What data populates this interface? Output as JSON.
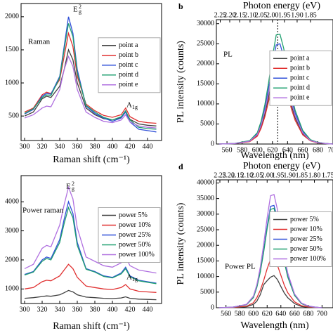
{
  "chart_data": [
    {
      "type": "line",
      "annotations": [
        {
          "text": "Raman"
        },
        {
          "text": "E",
          "sup": "2",
          "sub": "g"
        },
        {
          "text": "A",
          "sub": "1g"
        }
      ],
      "xlabel": "Raman shift (cm⁻¹)",
      "x": [
        300,
        310,
        320,
        325,
        330,
        340,
        345,
        350,
        355,
        360,
        370,
        380,
        390,
        400,
        410,
        415,
        420,
        430,
        440,
        450
      ],
      "series": [
        {
          "name": "point a",
          "color": "#404040",
          "values": [
            500,
            560,
            760,
            800,
            780,
            950,
            1200,
            1500,
            1350,
            1000,
            620,
            520,
            460,
            440,
            480,
            560,
            450,
            380,
            360,
            350
          ]
        },
        {
          "name": "point b",
          "color": "#e03030",
          "values": [
            560,
            620,
            820,
            860,
            840,
            1050,
            1400,
            1750,
            1550,
            1100,
            680,
            580,
            510,
            480,
            520,
            620,
            490,
            420,
            400,
            390
          ]
        },
        {
          "name": "point c",
          "color": "#3050d8",
          "values": [
            530,
            600,
            800,
            840,
            830,
            1100,
            1550,
            2000,
            1750,
            1200,
            650,
            540,
            470,
            420,
            470,
            560,
            410,
            300,
            280,
            260
          ]
        },
        {
          "name": "point d",
          "color": "#20a070",
          "values": [
            540,
            610,
            780,
            820,
            810,
            1080,
            1500,
            1900,
            1700,
            1150,
            660,
            560,
            480,
            440,
            490,
            580,
            440,
            330,
            310,
            300
          ]
        },
        {
          "name": "point e",
          "color": "#b070e0",
          "values": [
            470,
            520,
            620,
            650,
            640,
            900,
            1200,
            1400,
            1250,
            900,
            560,
            480,
            420,
            400,
            440,
            520,
            410,
            350,
            330,
            320
          ]
        }
      ],
      "xlim": [
        296,
        456
      ],
      "ylim": [
        130,
        2200
      ],
      "xticks": [
        300,
        320,
        340,
        360,
        380,
        400,
        420,
        440
      ],
      "yticks": [
        500,
        1000,
        1500,
        2000
      ],
      "legend": "upper right"
    },
    {
      "type": "line",
      "panel": "b",
      "annotations": [
        {
          "text": "PL"
        }
      ],
      "xlabel": "Wavelength (nm)",
      "ylabel": "PL intensity (counts)",
      "x2label": "Photon energy (eV)",
      "x": [
        550,
        570,
        590,
        600,
        605,
        610,
        615,
        620,
        625,
        630,
        635,
        640,
        645,
        650,
        660,
        670,
        680,
        690,
        700
      ],
      "series": [
        {
          "name": "point a",
          "color": "#404040",
          "values": [
            0,
            100,
            650,
            2150,
            4300,
            7500,
            11800,
            16800,
            20900,
            21100,
            18300,
            14000,
            9700,
            6500,
            2600,
            900,
            300,
            100,
            0
          ]
        },
        {
          "name": "point b",
          "color": "#e03030",
          "values": [
            0,
            100,
            600,
            1950,
            3900,
            6800,
            10700,
            15200,
            18900,
            19100,
            16600,
            12700,
            8800,
            5900,
            2300,
            800,
            300,
            100,
            0
          ]
        },
        {
          "name": "point c",
          "color": "#3050d8",
          "values": [
            0,
            130,
            770,
            2550,
            5100,
            8900,
            14000,
            19900,
            24700,
            25000,
            21700,
            16600,
            11500,
            7700,
            3100,
            1000,
            400,
            130,
            0
          ]
        },
        {
          "name": "point d",
          "color": "#20a070",
          "values": [
            0,
            140,
            840,
            2800,
            5600,
            9800,
            15400,
            21800,
            27200,
            27400,
            23800,
            18200,
            12600,
            8400,
            3400,
            1100,
            400,
            140,
            0
          ]
        },
        {
          "name": "point e",
          "color": "#b070e0",
          "values": [
            0,
            120,
            700,
            2350,
            4700,
            8200,
            12900,
            18300,
            22800,
            23000,
            20000,
            15300,
            10600,
            7100,
            2800,
            900,
            350,
            120,
            0
          ]
        }
      ],
      "vline": 627,
      "xlim": [
        546,
        700
      ],
      "ylim": [
        0,
        31000
      ],
      "xticks": [
        560,
        580,
        600,
        620,
        640,
        660,
        680,
        700
      ],
      "yticks": [
        0,
        5000,
        10000,
        15000,
        20000,
        25000,
        30000
      ],
      "x2ticks": [
        2.25,
        {
          "value": 2.2,
          "label": "2.20"
        },
        2.15,
        {
          "value": 2.1,
          "label": "2.10"
        },
        2.05,
        {
          "value": 2.0,
          "label": "2.00"
        },
        1.95,
        {
          "value": 1.9,
          "label": "1.90"
        },
        1.85
      ],
      "legend": "upper right"
    },
    {
      "type": "line",
      "annotations": [
        {
          "text": "Power raman"
        },
        {
          "text": "E",
          "sup": "2",
          "sub": "g"
        },
        {
          "text": "A",
          "sub": "1g"
        }
      ],
      "xlabel": "Raman shift (cm⁻¹)",
      "x": [
        300,
        310,
        320,
        325,
        330,
        340,
        345,
        350,
        355,
        360,
        370,
        380,
        390,
        400,
        410,
        415,
        420,
        430,
        440,
        450
      ],
      "series": [
        {
          "name": "power 5%",
          "color": "#404040",
          "values": [
            680,
            700,
            740,
            760,
            750,
            800,
            870,
            950,
            900,
            800,
            720,
            700,
            680,
            670,
            690,
            730,
            680,
            650,
            640,
            630
          ]
        },
        {
          "name": "power 10%",
          "color": "#e03030",
          "values": [
            1000,
            1050,
            1250,
            1300,
            1280,
            1450,
            1650,
            1850,
            1700,
            1400,
            1100,
            1050,
            1000,
            980,
            1050,
            1150,
            1000,
            920,
            900,
            880
          ]
        },
        {
          "name": "power 25%",
          "color": "#3050d8",
          "values": [
            1500,
            1600,
            2000,
            2100,
            2050,
            2700,
            3400,
            4000,
            3600,
            2600,
            1700,
            1600,
            1450,
            1400,
            1550,
            1750,
            1450,
            1300,
            1250,
            1200
          ]
        },
        {
          "name": "power 50%",
          "color": "#20a070",
          "values": [
            1480,
            1580,
            1950,
            2050,
            2000,
            2600,
            3250,
            3800,
            3450,
            2500,
            1680,
            1580,
            1430,
            1380,
            1520,
            1700,
            1420,
            1280,
            1230,
            1180
          ]
        },
        {
          "name": "power 100%",
          "color": "#b070e0",
          "values": [
            1700,
            1850,
            2400,
            2500,
            2450,
            3200,
            3900,
            4500,
            4100,
            3100,
            2100,
            1950,
            1800,
            1750,
            1900,
            2100,
            1800,
            1650,
            1600,
            1550
          ]
        }
      ],
      "xlim": [
        296,
        456
      ],
      "ylim": [
        500,
        4900
      ],
      "xticks": [
        300,
        320,
        340,
        360,
        380,
        400,
        420,
        440
      ],
      "yticks": [
        1000,
        2000,
        3000,
        4000
      ],
      "legend": "upper right"
    },
    {
      "type": "line",
      "panel": "d",
      "annotations": [
        {
          "text": "Power PL"
        }
      ],
      "xlabel": "Wavelength (nm)",
      "ylabel": "PL intensity (counts)",
      "x2label": "Photon energy (eV)",
      "x": [
        550,
        570,
        590,
        600,
        605,
        610,
        615,
        620,
        625,
        630,
        635,
        640,
        645,
        650,
        660,
        670,
        680,
        690,
        700
      ],
      "series": [
        {
          "name": "power 5%",
          "color": "#404040",
          "values": [
            0,
            50,
            320,
            1050,
            2100,
            4200,
            7400,
            8700,
            9800,
            10300,
            9000,
            6800,
            4700,
            3200,
            1300,
            400,
            150,
            50,
            0
          ]
        },
        {
          "name": "power 10%",
          "color": "#e03030",
          "values": [
            0,
            80,
            480,
            1600,
            3200,
            5600,
            8800,
            12500,
            15500,
            15700,
            13600,
            10400,
            7200,
            4800,
            1900,
            640,
            240,
            80,
            0
          ]
        },
        {
          "name": "power 25%",
          "color": "#3050d8",
          "values": [
            0,
            170,
            1000,
            3350,
            6700,
            11700,
            18400,
            26100,
            32500,
            32800,
            28500,
            21800,
            15100,
            10100,
            4000,
            1300,
            500,
            170,
            0
          ]
        },
        {
          "name": "power 50%",
          "color": "#20a070",
          "values": [
            0,
            160,
            980,
            3250,
            6500,
            11400,
            17900,
            25400,
            31500,
            31900,
            27600,
            21100,
            14600,
            9800,
            3900,
            1300,
            490,
            160,
            0
          ]
        },
        {
          "name": "power 100%",
          "color": "#b070e0",
          "values": [
            0,
            190,
            1100,
            3700,
            7400,
            13000,
            20400,
            28900,
            35900,
            36300,
            31500,
            24100,
            16700,
            11100,
            4400,
            1500,
            560,
            190,
            0
          ]
        }
      ],
      "xlim": [
        546,
        716
      ],
      "ylim": [
        0,
        41000
      ],
      "xticks": [
        560,
        580,
        600,
        620,
        640,
        660,
        680,
        700
      ],
      "yticks": [
        0,
        5000,
        10000,
        15000,
        20000,
        25000,
        30000,
        35000,
        40000
      ],
      "x2ticks": [
        2.25,
        {
          "value": 2.2,
          "label": "2.20"
        },
        2.15,
        {
          "value": 2.1,
          "label": "2.10"
        },
        2.05,
        {
          "value": 2.0,
          "label": "2.00"
        },
        1.95,
        {
          "value": 1.9,
          "label": "1.90"
        },
        1.85,
        {
          "value": 1.8,
          "label": "1.80"
        },
        1.75
      ],
      "legend": "upper right"
    }
  ]
}
